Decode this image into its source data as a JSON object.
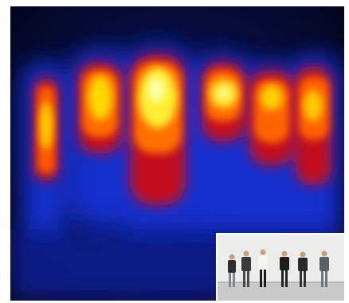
{
  "scene": {
    "figure_count": 6,
    "colors": {
      "background_cold": "#05071e",
      "low": "#1a2bd8",
      "mid": "#c01020",
      "warm": "#ff5a00",
      "hot": "#ffd800",
      "peak": "#ffffb0"
    }
  },
  "inset": {
    "person_count": 6,
    "wall_color": "#ececea",
    "floor_color": "#c9c9c9"
  }
}
